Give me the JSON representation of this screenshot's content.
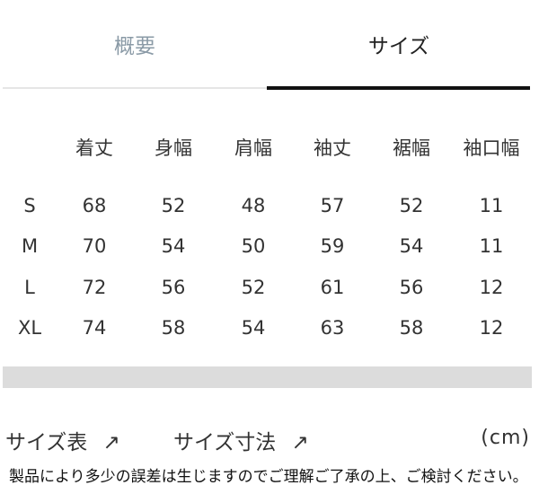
{
  "tabs": [
    {
      "label": "概要",
      "active": false
    },
    {
      "label": "サイズ",
      "active": true
    }
  ],
  "table": {
    "headers": [
      "",
      "着丈",
      "身幅",
      "肩幅",
      "袖丈",
      "裾幅",
      "袖口幅"
    ],
    "rows": [
      [
        "S",
        "68",
        "52",
        "48",
        "57",
        "52",
        "11"
      ],
      [
        "M",
        "70",
        "54",
        "50",
        "59",
        "54",
        "11"
      ],
      [
        "L",
        "72",
        "56",
        "52",
        "61",
        "56",
        "12"
      ],
      [
        "XL",
        "74",
        "58",
        "54",
        "63",
        "58",
        "12"
      ]
    ]
  },
  "links": [
    {
      "label": "サイズ表",
      "icon": "arrow-up-right-icon",
      "glyph": "↗"
    },
    {
      "label": "サイズ寸法",
      "icon": "arrow-up-right-icon",
      "glyph": "↗"
    }
  ],
  "unit": "(cm)",
  "note": "製品により多少の誤差は生じますのでご理解ご了承の上、ご検討ください。"
}
